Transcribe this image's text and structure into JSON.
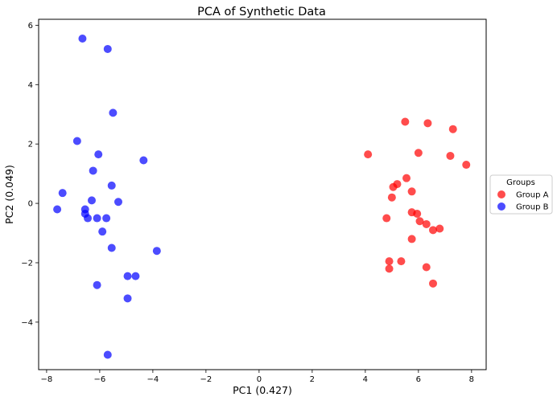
{
  "chart_data": {
    "type": "scatter",
    "title": "PCA of Synthetic Data",
    "xlabel": "PC1 (0.427)",
    "ylabel": "PC2 (0.049)",
    "xlim": [
      -8.3,
      8.55
    ],
    "ylim": [
      -5.6,
      6.2
    ],
    "xticks": [
      -8,
      -6,
      -4,
      -2,
      0,
      2,
      4,
      6,
      8
    ],
    "yticks": [
      -4,
      -2,
      0,
      2,
      4,
      6
    ],
    "grid": false,
    "legend": {
      "title": "Groups",
      "placement": "outside-right"
    },
    "series": [
      {
        "name": "Group A",
        "color": "#ff0000",
        "points": [
          [
            4.1,
            1.65
          ],
          [
            5.5,
            2.75
          ],
          [
            6.35,
            2.7
          ],
          [
            7.3,
            2.5
          ],
          [
            6.0,
            1.7
          ],
          [
            7.2,
            1.6
          ],
          [
            7.8,
            1.3
          ],
          [
            5.55,
            0.85
          ],
          [
            5.2,
            0.65
          ],
          [
            5.05,
            0.55
          ],
          [
            5.75,
            0.4
          ],
          [
            5.0,
            0.2
          ],
          [
            4.8,
            -0.5
          ],
          [
            5.75,
            -0.3
          ],
          [
            5.95,
            -0.35
          ],
          [
            6.05,
            -0.6
          ],
          [
            6.3,
            -0.7
          ],
          [
            6.8,
            -0.85
          ],
          [
            6.55,
            -0.9
          ],
          [
            5.75,
            -1.2
          ],
          [
            4.9,
            -1.95
          ],
          [
            5.35,
            -1.95
          ],
          [
            4.9,
            -2.2
          ],
          [
            6.3,
            -2.15
          ],
          [
            6.55,
            -2.7
          ]
        ]
      },
      {
        "name": "Group B",
        "color": "#0000ff",
        "points": [
          [
            -6.65,
            5.55
          ],
          [
            -5.7,
            5.2
          ],
          [
            -5.5,
            3.05
          ],
          [
            -6.85,
            2.1
          ],
          [
            -6.05,
            1.65
          ],
          [
            -4.35,
            1.45
          ],
          [
            -6.25,
            1.1
          ],
          [
            -5.55,
            0.6
          ],
          [
            -7.4,
            0.35
          ],
          [
            -6.3,
            0.1
          ],
          [
            -5.3,
            0.05
          ],
          [
            -7.6,
            -0.2
          ],
          [
            -6.55,
            -0.2
          ],
          [
            -6.55,
            -0.35
          ],
          [
            -6.45,
            -0.5
          ],
          [
            -6.1,
            -0.5
          ],
          [
            -5.75,
            -0.5
          ],
          [
            -5.9,
            -0.95
          ],
          [
            -5.55,
            -1.5
          ],
          [
            -3.85,
            -1.6
          ],
          [
            -4.95,
            -2.45
          ],
          [
            -4.65,
            -2.45
          ],
          [
            -6.1,
            -2.75
          ],
          [
            -4.95,
            -3.2
          ],
          [
            -5.7,
            -5.1
          ]
        ]
      }
    ]
  }
}
